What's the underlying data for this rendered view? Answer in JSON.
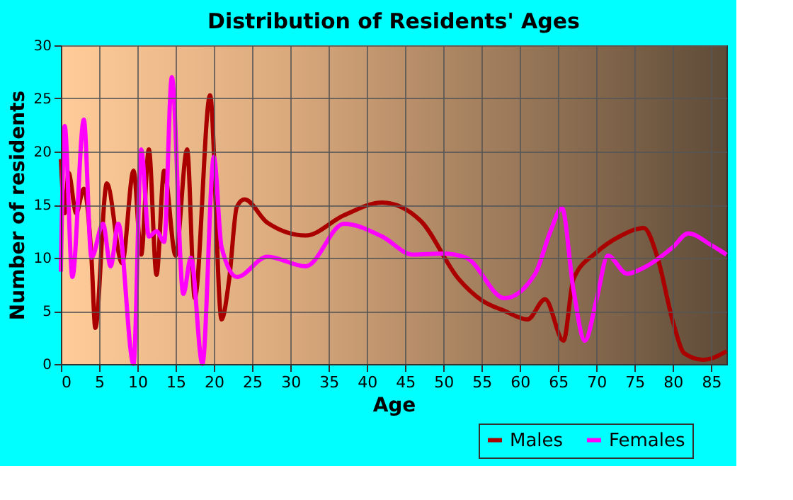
{
  "chart_data": {
    "type": "line",
    "title": "Distribution of Residents' Ages",
    "xlabel": "Age",
    "ylabel": "Number of residents",
    "xlim": [
      0,
      87
    ],
    "xticks": [
      0,
      5,
      10,
      15,
      20,
      25,
      30,
      35,
      40,
      45,
      50,
      55,
      60,
      65,
      70,
      75,
      80,
      85
    ],
    "ylim": [
      0,
      30
    ],
    "yticks": [
      0,
      5,
      10,
      15,
      20,
      25,
      30
    ],
    "grid": true,
    "legend": "bottom right",
    "line_style": "solid",
    "marker": "none",
    "series": [
      {
        "name": "Males",
        "color": "#aa0000",
        "x": [
          0,
          0.5,
          1,
          2,
          3,
          4,
          4.5,
          6,
          8,
          9.5,
          10.5,
          11.5,
          12.5,
          13.5,
          15,
          16.5,
          17.5,
          19.5,
          21,
          22,
          23,
          24,
          27,
          32,
          37,
          42,
          47,
          52,
          55,
          58,
          61,
          63.3,
          65.7,
          67,
          70,
          73,
          76.2,
          78,
          80,
          81.5,
          84,
          87
        ],
        "values": [
          19.3,
          14.2,
          18,
          14.2,
          16.5,
          10,
          3.4,
          17,
          9.5,
          18.2,
          10.3,
          20.2,
          8.4,
          18.2,
          10.2,
          20.2,
          6.2,
          25.3,
          4.2,
          8,
          14.8,
          15.5,
          13.3,
          12.1,
          14,
          15.2,
          13.5,
          8,
          6,
          5,
          4.2,
          6.1,
          2.2,
          8,
          10.5,
          12,
          12.8,
          10,
          4,
          1,
          0.4,
          1.2
        ]
      },
      {
        "name": "Females",
        "color": "#ff00ff",
        "x": [
          0,
          0.5,
          1.5,
          3,
          4,
          5.5,
          6.5,
          7.5,
          9.5,
          10.5,
          11.5,
          12.5,
          13.5,
          14.5,
          16,
          17,
          18.5,
          20,
          21,
          23,
          27,
          32,
          37,
          42,
          46,
          50,
          53,
          58,
          62,
          64,
          65.5,
          67,
          68.5,
          70,
          71.5,
          74,
          76,
          80,
          82,
          85,
          87
        ],
        "values": [
          8.7,
          22.4,
          8.2,
          23,
          10,
          13.2,
          9.2,
          13.2,
          0,
          20.2,
          12,
          12.5,
          11.5,
          27,
          6.6,
          10,
          0,
          19.5,
          11,
          8.2,
          10.1,
          9.2,
          13.2,
          12,
          10.3,
          10.4,
          10,
          6.2,
          8.5,
          12.5,
          14.7,
          7,
          2.2,
          6,
          10.2,
          8.5,
          9,
          11,
          12.3,
          11.2,
          10.3
        ]
      }
    ]
  }
}
